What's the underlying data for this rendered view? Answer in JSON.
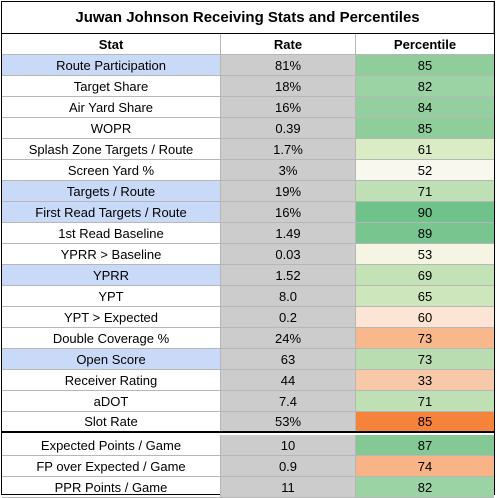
{
  "title": "Juwan Johnson Receiving Stats and Percentiles",
  "columns": [
    "Stat",
    "Rate",
    "Percentile"
  ],
  "rows": [
    {
      "stat": "Route Participation",
      "rate": "81%",
      "pct": "85",
      "pct_color": "#8fce9b",
      "highlight": true
    },
    {
      "stat": "Target Share",
      "rate": "18%",
      "pct": "82",
      "pct_color": "#9bd3a5",
      "highlight": false
    },
    {
      "stat": "Air Yard Share",
      "rate": "16%",
      "pct": "84",
      "pct_color": "#94d09f",
      "highlight": false
    },
    {
      "stat": "WOPR",
      "rate": "0.39",
      "pct": "85",
      "pct_color": "#8fce9b",
      "highlight": false
    },
    {
      "stat": "Splash Zone Targets / Route",
      "rate": "1.7%",
      "pct": "61",
      "pct_color": "#d9ecc3",
      "highlight": false
    },
    {
      "stat": "Screen Yard %",
      "rate": "3%",
      "pct": "52",
      "pct_color": "#f9f8ef",
      "highlight": false
    },
    {
      "stat": "Targets / Route",
      "rate": "19%",
      "pct": "71",
      "pct_color": "#bfe0b4",
      "highlight": true
    },
    {
      "stat": "First Read Targets / Route",
      "rate": "16%",
      "pct": "90",
      "pct_color": "#6fc28a",
      "highlight": true
    },
    {
      "stat": "1st Read Baseline",
      "rate": "1.49",
      "pct": "89",
      "pct_color": "#78c58f",
      "highlight": false
    },
    {
      "stat": "YPRR > Baseline",
      "rate": "0.03",
      "pct": "53",
      "pct_color": "#f6f5e4",
      "highlight": false
    },
    {
      "stat": "YPRR",
      "rate": "1.52",
      "pct": "69",
      "pct_color": "#c3e2b6",
      "highlight": true
    },
    {
      "stat": "YPT",
      "rate": "8.0",
      "pct": "65",
      "pct_color": "#cde6bb",
      "highlight": false
    },
    {
      "stat": "YPT > Expected",
      "rate": "0.2",
      "pct": "60",
      "pct_color": "#fce5d4",
      "highlight": false
    },
    {
      "stat": "Double Coverage %",
      "rate": "24%",
      "pct": "73",
      "pct_color": "#f9b88c",
      "highlight": false
    },
    {
      "stat": "Open Score",
      "rate": "63",
      "pct": "73",
      "pct_color": "#b9ddb1",
      "highlight": true
    },
    {
      "stat": "Receiver Rating",
      "rate": "44",
      "pct": "33",
      "pct_color": "#f7c9a9",
      "highlight": false
    },
    {
      "stat": "aDOT",
      "rate": "7.4",
      "pct": "71",
      "pct_color": "#bfe0b4",
      "highlight": false
    },
    {
      "stat": "Slot Rate",
      "rate": "53%",
      "pct": "85",
      "pct_color": "#f5833c",
      "highlight": false
    },
    {
      "stat": "Expected Points / Game",
      "rate": "10",
      "pct": "87",
      "pct_color": "#84c995",
      "highlight": false
    },
    {
      "stat": "FP over Expected / Game",
      "rate": "0.9",
      "pct": "74",
      "pct_color": "#f8b386",
      "highlight": false
    },
    {
      "stat": "PPR Points / Game",
      "rate": "11",
      "pct": "82",
      "pct_color": "#9bd3a5",
      "highlight": false
    }
  ],
  "colors": {
    "rate_bg": "#cccccc",
    "highlight_bg": "#c9daf8",
    "grid_line": "#b7b7b7",
    "border": "#000000"
  }
}
